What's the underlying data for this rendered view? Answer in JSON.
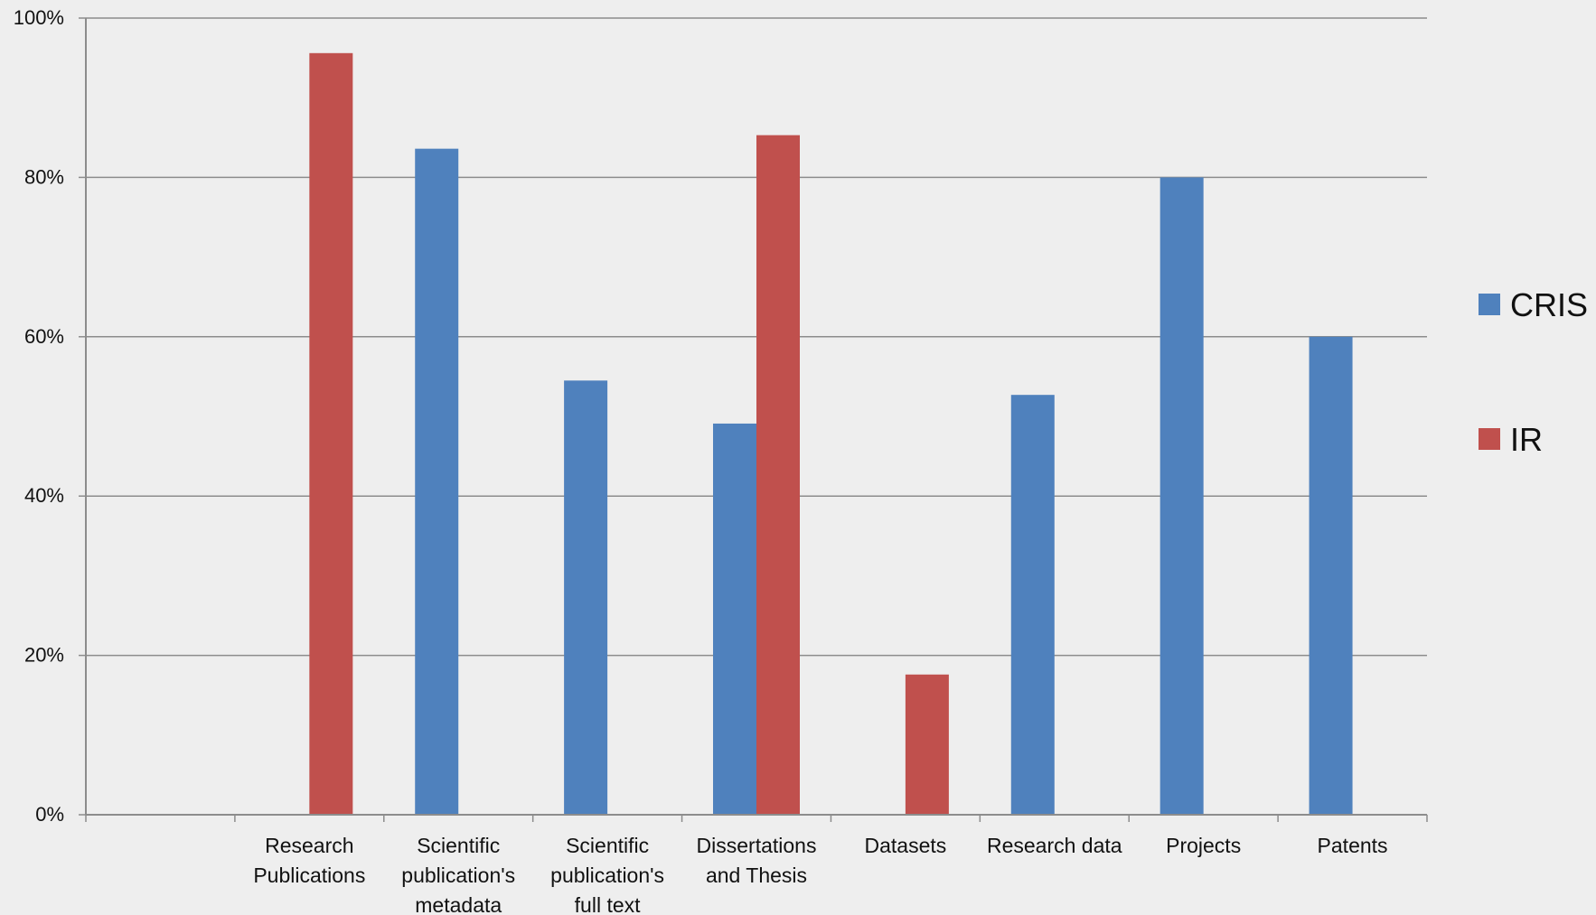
{
  "chart_data": {
    "type": "bar",
    "title": "",
    "xlabel": "",
    "ylabel": "",
    "ylim": [
      0,
      100
    ],
    "yticks": [
      0,
      20,
      40,
      60,
      80,
      100
    ],
    "ytick_labels": [
      "0%",
      "20%",
      "40%",
      "60%",
      "80%",
      "100%"
    ],
    "grid": true,
    "legend_position": "right",
    "categories": [
      [],
      [
        "Research",
        "Publications"
      ],
      [
        "Scientific",
        "publication's",
        "metadata"
      ],
      [
        "Scientific",
        "publication's",
        "full text"
      ],
      [
        "Dissertations",
        "and Thesis"
      ],
      [
        "Datasets"
      ],
      [
        "Research data"
      ],
      [
        "Projects"
      ],
      [
        "Patents"
      ]
    ],
    "series": [
      {
        "name": "CRIS",
        "color": "#4f81bd",
        "values": [
          null,
          null,
          83.6,
          54.5,
          49.1,
          null,
          52.7,
          80.0,
          60.0
        ]
      },
      {
        "name": "IR",
        "color": "#c0504d",
        "values": [
          null,
          95.6,
          null,
          null,
          85.3,
          17.6,
          null,
          null,
          null
        ]
      }
    ]
  }
}
